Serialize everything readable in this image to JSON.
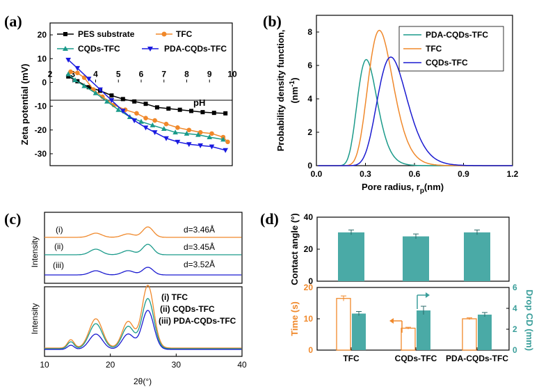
{
  "panels": {
    "a": "(a)",
    "b": "(b)",
    "c": "(c)",
    "d": "(d)"
  },
  "chart_data": [
    {
      "id": "a",
      "type": "line",
      "xlabel": "pH",
      "ylabel": "Zeta potential (mV)",
      "xlim": [
        2,
        10
      ],
      "ylim": [
        -35,
        25
      ],
      "xticks": [
        "2",
        "3",
        "4",
        "5",
        "6",
        "7",
        "8",
        "9",
        "10"
      ],
      "yticks": [
        "20",
        "10",
        "0",
        "-10",
        "-20",
        "-30"
      ],
      "legend_position": "top",
      "series": [
        {
          "name": "PES substrate",
          "color": "#000000",
          "marker": "square",
          "x": [
            2.8,
            3.2,
            3.7,
            4.2,
            4.7,
            5.2,
            5.7,
            6.2,
            6.7,
            7.2,
            7.7,
            8.2,
            8.7,
            9.2,
            9.7
          ],
          "y": [
            2.5,
            0.5,
            -2,
            -3.5,
            -5.5,
            -7,
            -8,
            -9,
            -10.5,
            -11,
            -11.5,
            -12,
            -12.5,
            -12.8,
            -13
          ]
        },
        {
          "name": "TFC",
          "color": "#f0882a",
          "marker": "circle",
          "x": [
            2.9,
            3.2,
            3.5,
            3.9,
            4.3,
            4.8,
            5.3,
            5.8,
            6.2,
            6.6,
            7.1,
            7.6,
            8.1,
            8.6,
            9.1,
            9.6,
            9.8
          ],
          "y": [
            4.5,
            4,
            2,
            -3,
            -6,
            -9.5,
            -11.5,
            -13,
            -15,
            -16,
            -17.5,
            -19,
            -20,
            -21,
            -21.5,
            -23,
            -25
          ]
        },
        {
          "name": "CQDs-TFC",
          "color": "#1a9a8a",
          "marker": "triangle-up",
          "x": [
            2.8,
            3.1,
            3.5,
            4,
            4.5,
            5,
            5.5,
            6,
            6.5,
            7,
            7.5,
            8,
            8.5,
            9,
            9.6
          ],
          "y": [
            3.5,
            1,
            -1.5,
            -4.5,
            -8,
            -11.5,
            -14.5,
            -16.5,
            -18,
            -19.5,
            -21,
            -21.5,
            -22,
            -23,
            -24
          ]
        },
        {
          "name": "PDA-CQDs-TFC",
          "color": "#1a1ae0",
          "marker": "triangle-down",
          "x": [
            2.8,
            3.2,
            3.7,
            4.2,
            4.7,
            5.2,
            5.7,
            6.2,
            6.6,
            7.1,
            7.6,
            8.1,
            8.6,
            9.1,
            9.7
          ],
          "y": [
            9.5,
            6,
            1.5,
            -3,
            -7.5,
            -12,
            -16,
            -19,
            -21,
            -23.5,
            -25,
            -26,
            -26.5,
            -27,
            -28.5
          ]
        }
      ]
    },
    {
      "id": "b",
      "type": "line",
      "xlabel": "Pore radius, r",
      "xlabel_sub": "p",
      "xlabel_unit": "(nm)",
      "ylabel": "Probability density function,",
      "ylabel_unit_a": "(nm",
      "ylabel_unit_sup": "-1",
      "ylabel_unit_b": ")",
      "xlim": [
        0,
        1.2
      ],
      "ylim": [
        0,
        9
      ],
      "xticks": [
        "0.0",
        "0.3",
        "0.6",
        "0.9",
        "1.2"
      ],
      "yticks": [
        "0",
        "2",
        "4",
        "6",
        "8"
      ],
      "legend_position": "top-right",
      "series": [
        {
          "name": "PDA-CQDs-TFC",
          "color": "#1a9a8a",
          "peak_x": 0.305,
          "peak_y": 6.35
        },
        {
          "name": "TFC",
          "color": "#f0882a",
          "peak_x": 0.385,
          "peak_y": 8.1
        },
        {
          "name": "CQDs-TFC",
          "color": "#1a1ad0",
          "peak_x": 0.455,
          "peak_y": 6.5
        }
      ]
    },
    {
      "id": "c",
      "type": "line",
      "xlabel": "2θ(°)",
      "ylabel": "Intensity",
      "xlim": [
        10,
        40
      ],
      "xticks": [
        "10",
        "20",
        "30",
        "40"
      ],
      "top_series": [
        {
          "name": "(i)",
          "color": "#f0882a",
          "annotation": "d=3.46Å"
        },
        {
          "name": "(ii)",
          "color": "#1a9a8a",
          "annotation": "d=3.45Å"
        },
        {
          "name": "(iii)",
          "color": "#1a1ad0",
          "annotation": "d=3.52Å"
        }
      ],
      "legend": [
        "(i) TFC",
        "(ii) CQDs-TFC",
        "(iii) PDA-CQDs-TFC"
      ],
      "peaks_2theta": [
        14,
        17.8,
        22.7,
        25.7
      ]
    },
    {
      "id": "d",
      "type": "bar",
      "categories": [
        "TFC",
        "CQDs-TFC",
        "PDA-CQDs-TFC"
      ],
      "top": {
        "ylabel": "Contact angle (°)",
        "ylim": [
          0,
          40
        ],
        "yticks": [
          "0",
          "20",
          "40"
        ],
        "values": [
          30.5,
          28,
          30.5
        ],
        "errors": [
          1.5,
          1.5,
          1.5
        ],
        "color": "#4aaaa6"
      },
      "bottom": {
        "ylabel_left": "Time (s)",
        "ylabel_right": "Drop CD (mm)",
        "left_ylim": [
          0,
          20
        ],
        "left_yticks": [
          "0",
          "10",
          "20"
        ],
        "right_ylim": [
          0,
          6
        ],
        "right_yticks": [
          "0",
          "2",
          "4",
          "6"
        ],
        "time_values": [
          16.5,
          7,
          10
        ],
        "time_errors": [
          0.8,
          0.3,
          0.3
        ],
        "cd_values": [
          3.5,
          3.8,
          3.4
        ],
        "cd_errors": [
          0.2,
          0.4,
          0.2
        ],
        "time_color": "#f0882a",
        "cd_color": "#4aaaa6"
      }
    }
  ]
}
